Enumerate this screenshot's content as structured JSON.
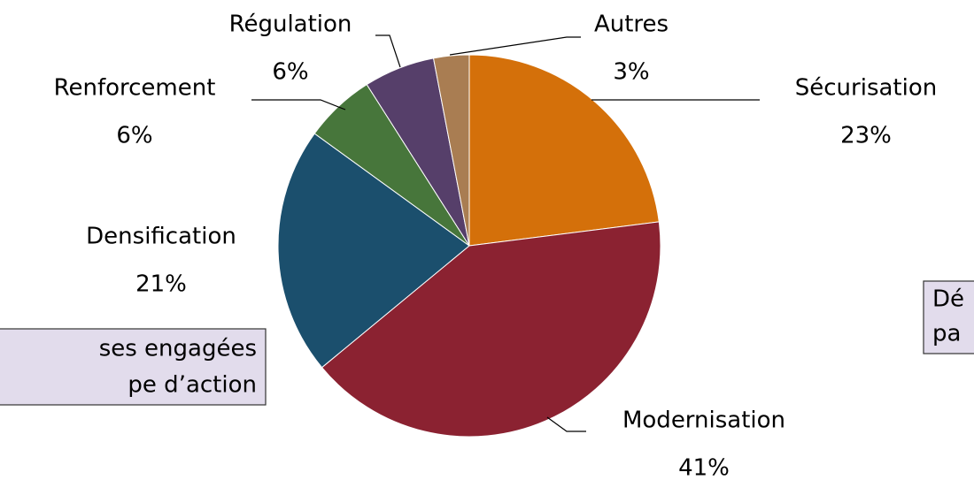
{
  "chart_data": {
    "type": "pie",
    "categories": [
      "Sécurisation",
      "Modernisation",
      "Densification",
      "Renforcement",
      "Régulation",
      "Autres"
    ],
    "values": [
      23,
      41,
      21,
      6,
      6,
      3
    ],
    "value_labels": [
      "23%",
      "41%",
      "21%",
      "6%",
      "6%",
      "3%"
    ],
    "colors": [
      "#d4700a",
      "#8b2231",
      "#1b4f6d",
      "#47763b",
      "#563f6a",
      "#a97d52"
    ],
    "annotations": [
      [
        "ses engagées",
        "pe d’action"
      ],
      [
        "Dé",
        "pa"
      ]
    ]
  }
}
